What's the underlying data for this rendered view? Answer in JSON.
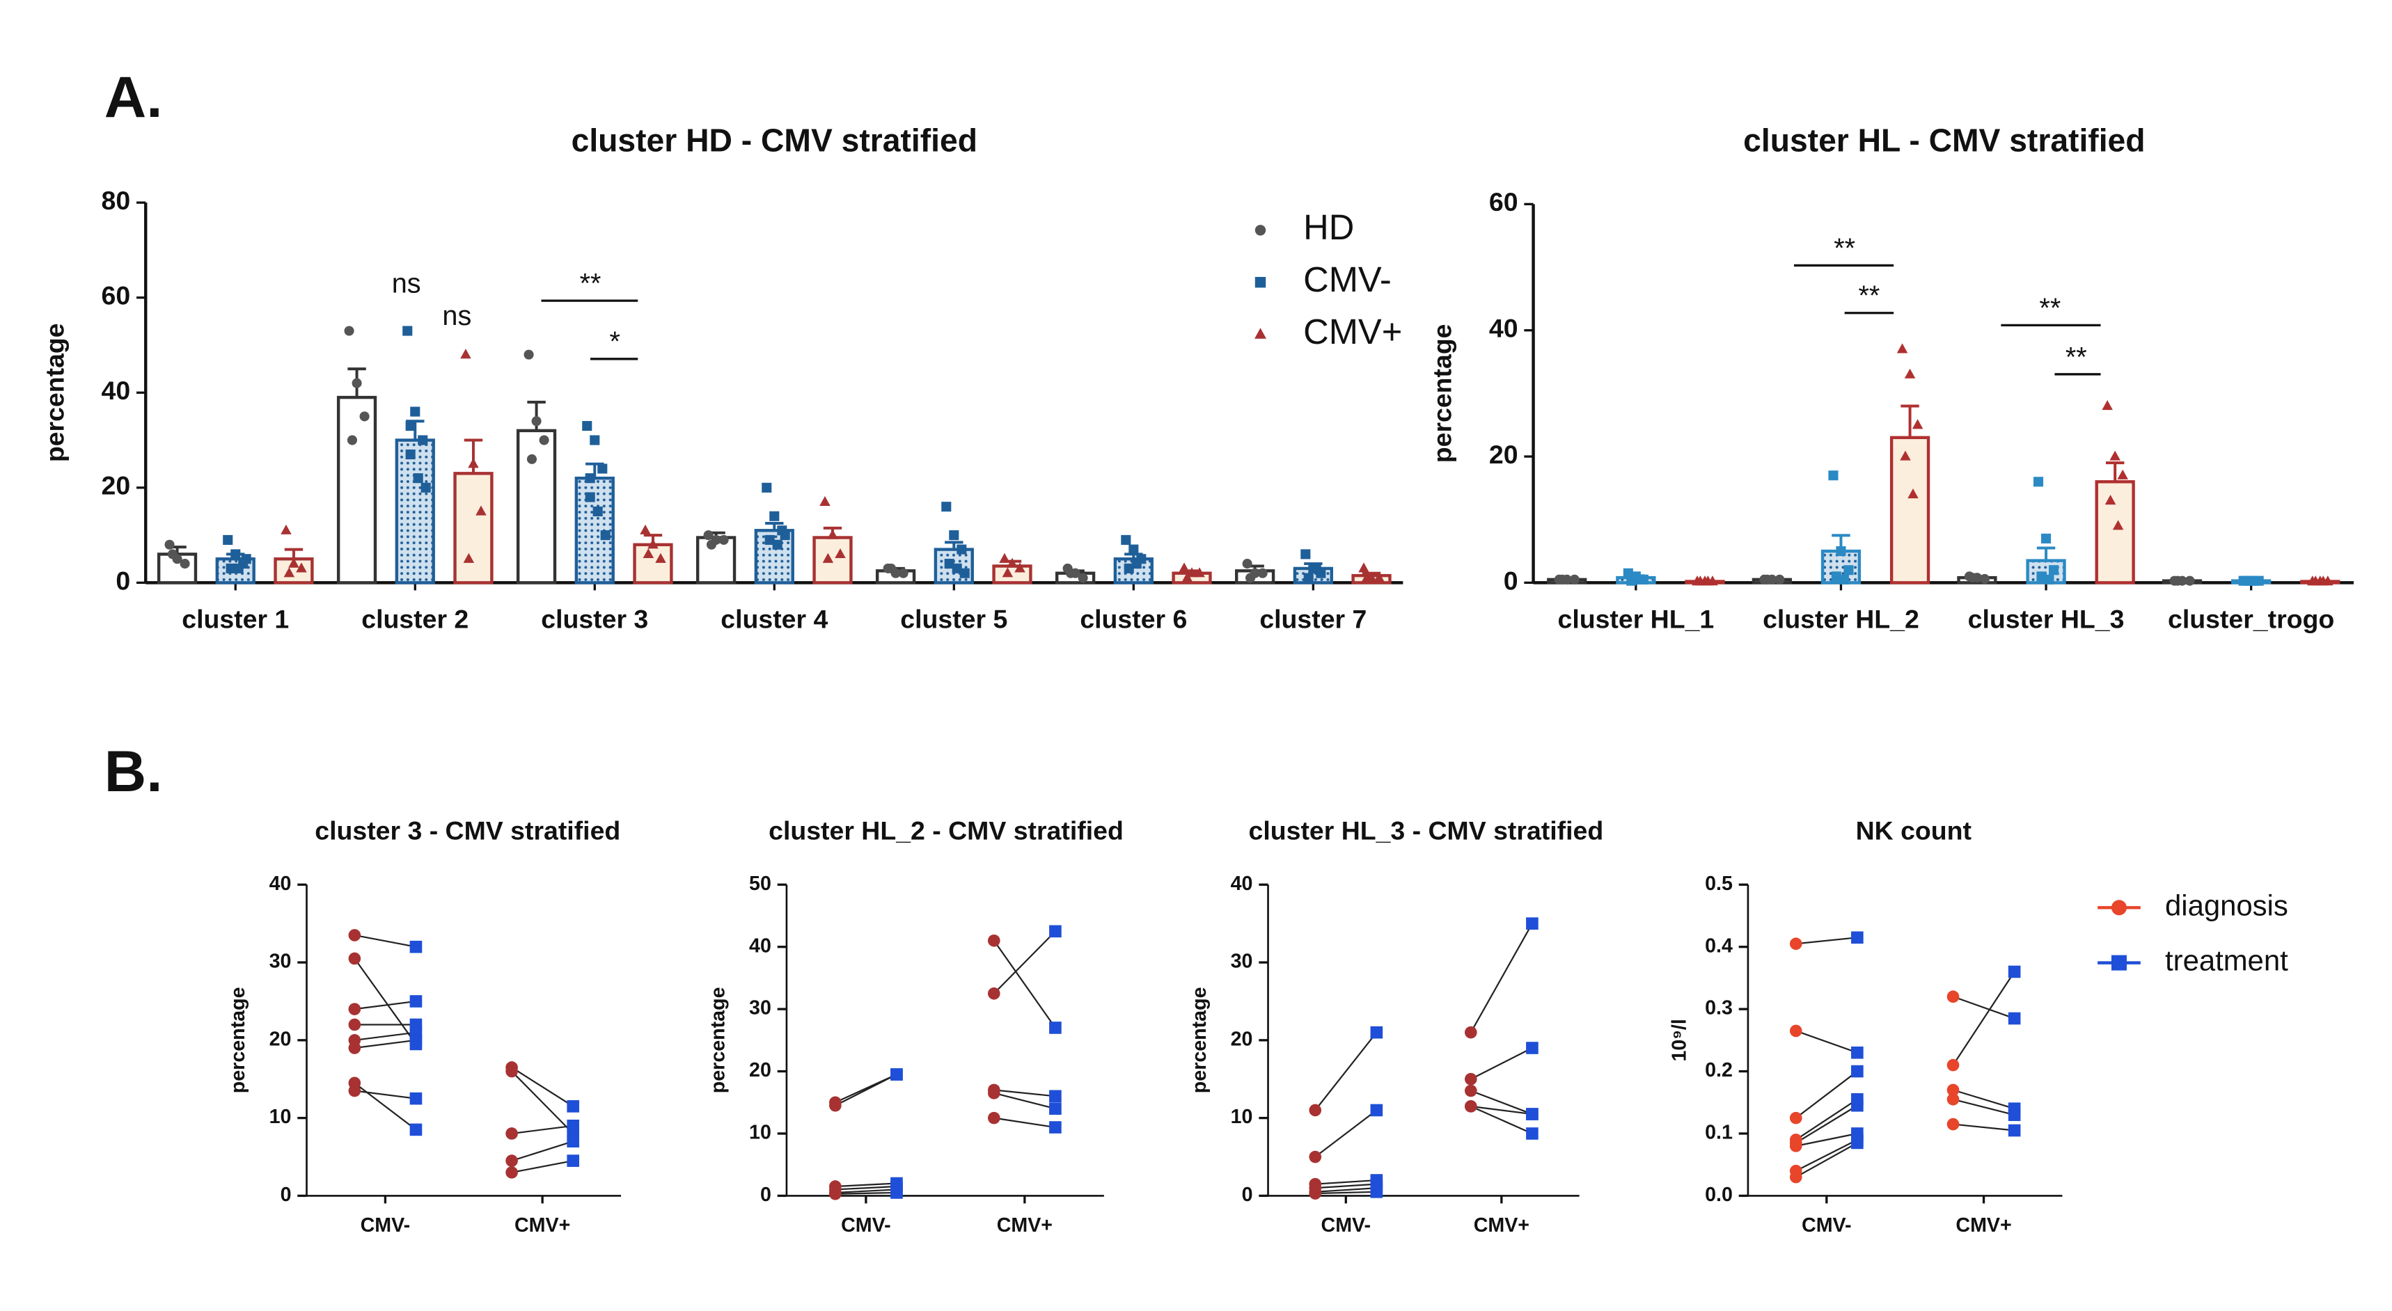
{
  "panels": [
    "A.",
    "B."
  ],
  "chart_data": [
    {
      "type": "bar",
      "title": "cluster HD - CMV stratified",
      "y_label": "percentage",
      "categories": [
        "cluster 1",
        "cluster 2",
        "cluster 3",
        "cluster 4",
        "cluster 5",
        "cluster 6",
        "cluster 7"
      ],
      "ylim": [
        0,
        80
      ],
      "yticks": [
        0,
        20,
        40,
        60,
        80
      ],
      "legend": true,
      "annotations": [
        "ns",
        "ns",
        "**",
        "*"
      ],
      "series": [
        {
          "name": "HD",
          "color": "#333333",
          "values": [
            6,
            39,
            32,
            9.5,
            2.5,
            2,
            2.5
          ],
          "errors": [
            1.5,
            6,
            6,
            1,
            0.5,
            0.5,
            1
          ],
          "points": [
            [
              8,
              5,
              4,
              6
            ],
            [
              53,
              42,
              35,
              30
            ],
            [
              48,
              34,
              30,
              26
            ],
            [
              10,
              9,
              9,
              8
            ],
            [
              3,
              2,
              2,
              3
            ],
            [
              3,
              2,
              1,
              2
            ],
            [
              4,
              2,
              2,
              1
            ]
          ]
        },
        {
          "name": "CMV-",
          "color": "#1f5f99",
          "values": [
            5,
            30,
            22,
            11,
            7,
            5,
            3
          ],
          "errors": [
            1,
            4,
            3,
            1.5,
            1.5,
            1,
            1
          ],
          "points": [
            [
              9,
              6,
              4,
              3,
              3,
              5
            ],
            [
              53,
              36,
              30,
              27,
              22,
              20,
              33
            ],
            [
              33,
              30,
              24,
              18,
              15,
              10,
              22
            ],
            [
              20,
              14,
              11,
              9,
              8,
              10
            ],
            [
              16,
              10,
              7,
              4,
              3,
              2
            ],
            [
              9,
              7,
              5,
              3,
              4
            ],
            [
              6,
              3,
              2,
              1,
              3
            ]
          ]
        },
        {
          "name": "CMV+",
          "color": "#a83232",
          "values": [
            5,
            23,
            8,
            9.5,
            3.5,
            2,
            1.5
          ],
          "errors": [
            2,
            7,
            2,
            2,
            1,
            0.5,
            0.5
          ],
          "points": [
            [
              11,
              4,
              3,
              2
            ],
            [
              48,
              25,
              15,
              5
            ],
            [
              11,
              8,
              5,
              6
            ],
            [
              17,
              10,
              6,
              5
            ],
            [
              5,
              4,
              3,
              2
            ],
            [
              3,
              2,
              2,
              1
            ],
            [
              3,
              1,
              1,
              1
            ]
          ]
        }
      ]
    },
    {
      "type": "bar",
      "title": "cluster HL - CMV stratified",
      "y_label": "percentage",
      "categories": [
        "cluster HL_1",
        "cluster HL_2",
        "cluster HL_3",
        "cluster_trogo"
      ],
      "ylim": [
        0,
        60
      ],
      "yticks": [
        0,
        20,
        40,
        60
      ],
      "annotations": [
        "**",
        "**",
        "**",
        "**"
      ],
      "series": [
        {
          "name": "HD",
          "color": "#333333",
          "values": [
            0.5,
            0.5,
            0.8,
            0.3
          ],
          "errors": [
            0.1,
            0.1,
            0.2,
            0.1
          ],
          "points": [
            [
              0.5,
              0.5,
              0.5,
              0.5
            ],
            [
              0.5,
              0.5,
              0.5,
              0.5
            ],
            [
              1,
              0.8,
              0.6,
              0.8
            ],
            [
              0.3,
              0.3,
              0.3,
              0.3
            ]
          ]
        },
        {
          "name": "CMV-",
          "color": "#2b8ac4",
          "values": [
            0.8,
            5,
            3.5,
            0.3
          ],
          "errors": [
            0.3,
            2.5,
            2,
            0.1
          ],
          "points": [
            [
              1.5,
              1,
              0.5,
              0.3,
              0.5
            ],
            [
              17,
              5,
              2,
              1,
              0.5
            ],
            [
              16,
              7,
              2,
              1,
              0.5
            ],
            [
              0.3,
              0.3,
              0.3,
              0.3,
              0.3
            ]
          ]
        },
        {
          "name": "CMV+",
          "color": "#b03030",
          "values": [
            0.2,
            23,
            16,
            0.2
          ],
          "errors": [
            0.1,
            5,
            3,
            0.1
          ],
          "points": [
            [
              0.2,
              0.2,
              0.2,
              0.2,
              0.2
            ],
            [
              37,
              33,
              25,
              20,
              14
            ],
            [
              28,
              20,
              17,
              13,
              9
            ],
            [
              0.2,
              0.2,
              0.2,
              0.2,
              0.2
            ]
          ]
        }
      ]
    },
    {
      "type": "line",
      "title": "cluster 3 - CMV stratified",
      "y_label": "percentage",
      "categories": [
        "CMV-",
        "CMV+"
      ],
      "ylim": [
        0,
        40
      ],
      "yticks": [
        0,
        10,
        20,
        30,
        40
      ],
      "series": [
        {
          "name": "diagnosis",
          "color": "#a83232",
          "values": [
            [
              33.5,
              30.5,
              24,
              22,
              20,
              19,
              14.5,
              13.5
            ],
            [
              16.5,
              16,
              8,
              4.5,
              3
            ]
          ]
        },
        {
          "name": "treatment",
          "color": "#1f4fd8",
          "values": [
            [
              32,
              19.5,
              25,
              22,
              21,
              20,
              8.5,
              12.5
            ],
            [
              11.5,
              8,
              9,
              7,
              4.5
            ]
          ]
        }
      ]
    },
    {
      "type": "line",
      "title": "cluster HL_2 - CMV stratified",
      "y_label": "percentage",
      "categories": [
        "CMV-",
        "CMV+"
      ],
      "ylim": [
        0,
        50
      ],
      "yticks": [
        0,
        10,
        20,
        30,
        40,
        50
      ],
      "series": [
        {
          "name": "diagnosis",
          "color": "#a83232",
          "values": [
            [
              15,
              14.5,
              1.5,
              1,
              0.5,
              0.3
            ],
            [
              41,
              32.5,
              17,
              16.5,
              12.5
            ]
          ]
        },
        {
          "name": "treatment",
          "color": "#1f4fd8",
          "values": [
            [
              19.5,
              19.5,
              2,
              1.5,
              1,
              0.5
            ],
            [
              27,
              42.5,
              16,
              14,
              11
            ]
          ]
        }
      ]
    },
    {
      "type": "line",
      "title": "cluster HL_3 - CMV stratified",
      "y_label": "percentage",
      "categories": [
        "CMV-",
        "CMV+"
      ],
      "ylim": [
        0,
        40
      ],
      "yticks": [
        0,
        10,
        20,
        30,
        40
      ],
      "series": [
        {
          "name": "diagnosis",
          "color": "#a83232",
          "values": [
            [
              11,
              5,
              1.5,
              1,
              0.5,
              0.3
            ],
            [
              21,
              15,
              13.5,
              11.5,
              11.5
            ]
          ]
        },
        {
          "name": "treatment",
          "color": "#1f4fd8",
          "values": [
            [
              21,
              11,
              2,
              1.5,
              1,
              0.5
            ],
            [
              35,
              19,
              10.5,
              8,
              10.5
            ]
          ]
        }
      ]
    },
    {
      "type": "line",
      "title": "NK count",
      "y_label": "10⁹/l",
      "legend": true,
      "categories": [
        "CMV-",
        "CMV+"
      ],
      "ylim": [
        0,
        0.5
      ],
      "yticks": [
        {
          "value": 0,
          "label": "0.0"
        },
        0.1,
        0.2,
        0.3,
        0.4,
        0.5
      ],
      "series": [
        {
          "name": "diagnosis",
          "color": "#e8452a",
          "values": [
            [
              0.405,
              0.265,
              0.125,
              0.09,
              0.085,
              0.08,
              0.04,
              0.03
            ],
            [
              0.32,
              0.21,
              0.17,
              0.155,
              0.115
            ]
          ]
        },
        {
          "name": "treatment",
          "color": "#1f4fd8",
          "values": [
            [
              0.415,
              0.23,
              0.2,
              0.155,
              0.145,
              0.1,
              0.09,
              0.085
            ],
            [
              0.285,
              0.36,
              0.14,
              0.13,
              0.105
            ]
          ]
        }
      ]
    }
  ]
}
